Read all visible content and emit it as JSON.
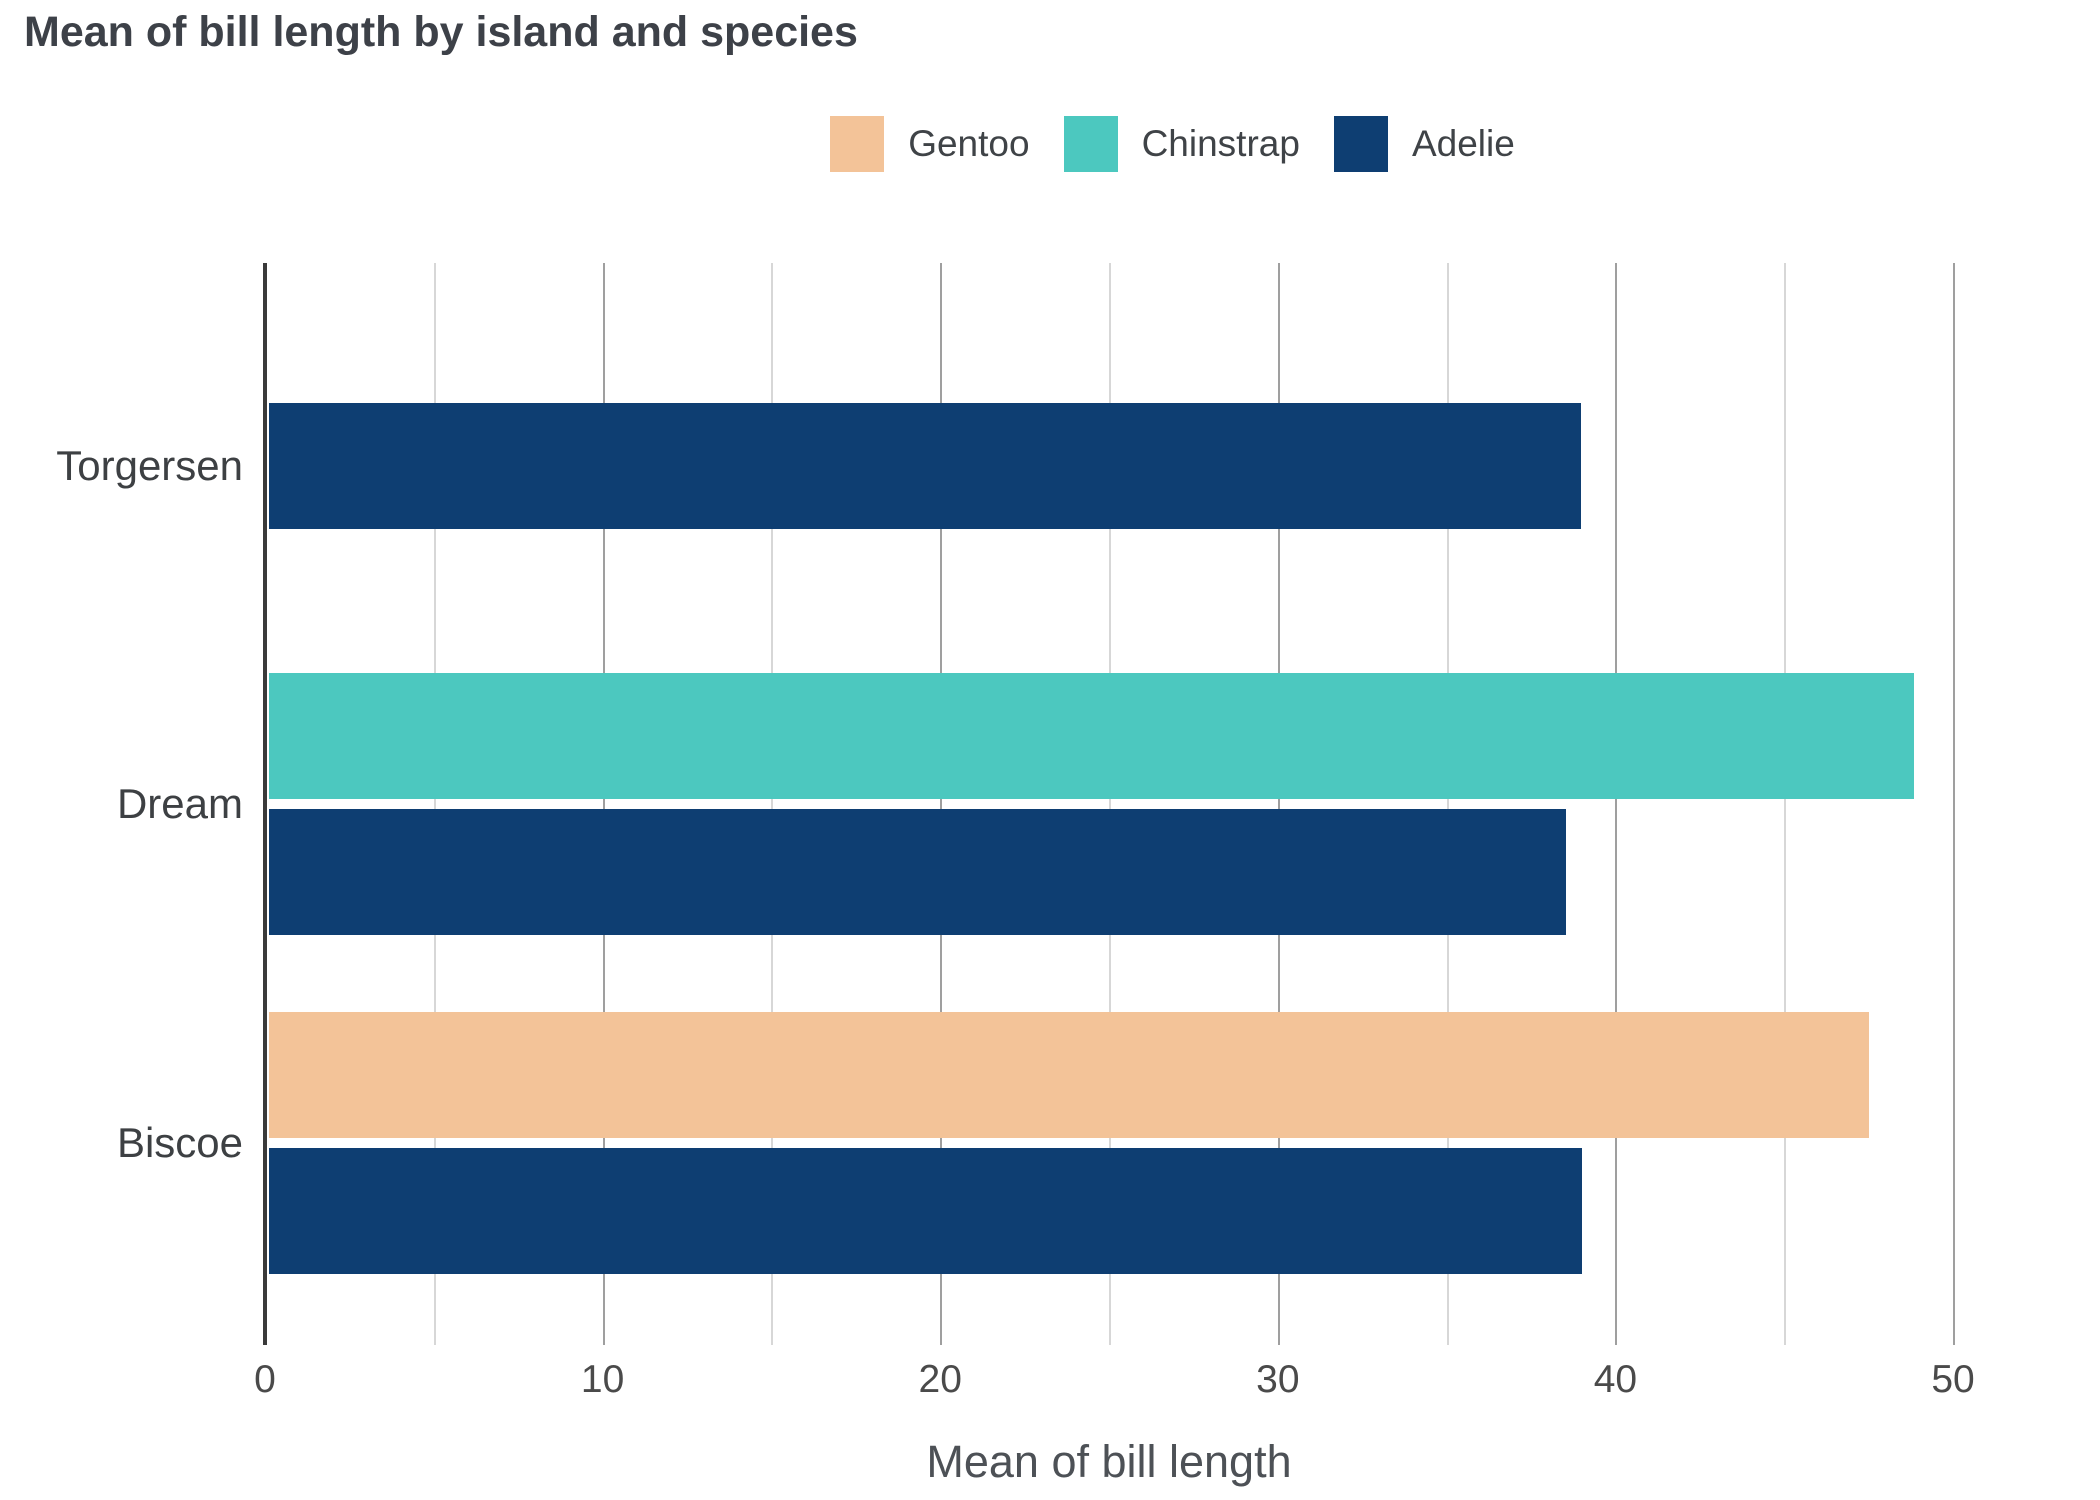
{
  "title": "Mean of bill length by island and species",
  "chart_data": {
    "type": "bar",
    "orientation": "horizontal",
    "title": "Mean of bill length by island and species",
    "xlabel": "Mean of bill length",
    "ylabel": "",
    "categories": [
      "Torgersen",
      "Dream",
      "Biscoe"
    ],
    "series": [
      {
        "name": "Gentoo",
        "color": "#F3C398",
        "values": [
          null,
          null,
          47.5
        ]
      },
      {
        "name": "Chinstrap",
        "color": "#4CC8BF",
        "values": [
          null,
          48.83,
          null
        ]
      },
      {
        "name": "Adelie",
        "color": "#0E3E72",
        "values": [
          38.95,
          38.5,
          38.98
        ]
      }
    ],
    "x_ticks": [
      "0",
      "10",
      "20",
      "30",
      "40",
      "50"
    ],
    "x_tick_values": [
      0,
      10,
      20,
      30,
      40,
      50
    ],
    "x_minor_step": 5,
    "xlim": [
      0,
      53.76
    ],
    "grid": "vertical",
    "legend_position": "top",
    "legend_labels": [
      "Gentoo",
      "Chinstrap",
      "Adelie"
    ]
  }
}
